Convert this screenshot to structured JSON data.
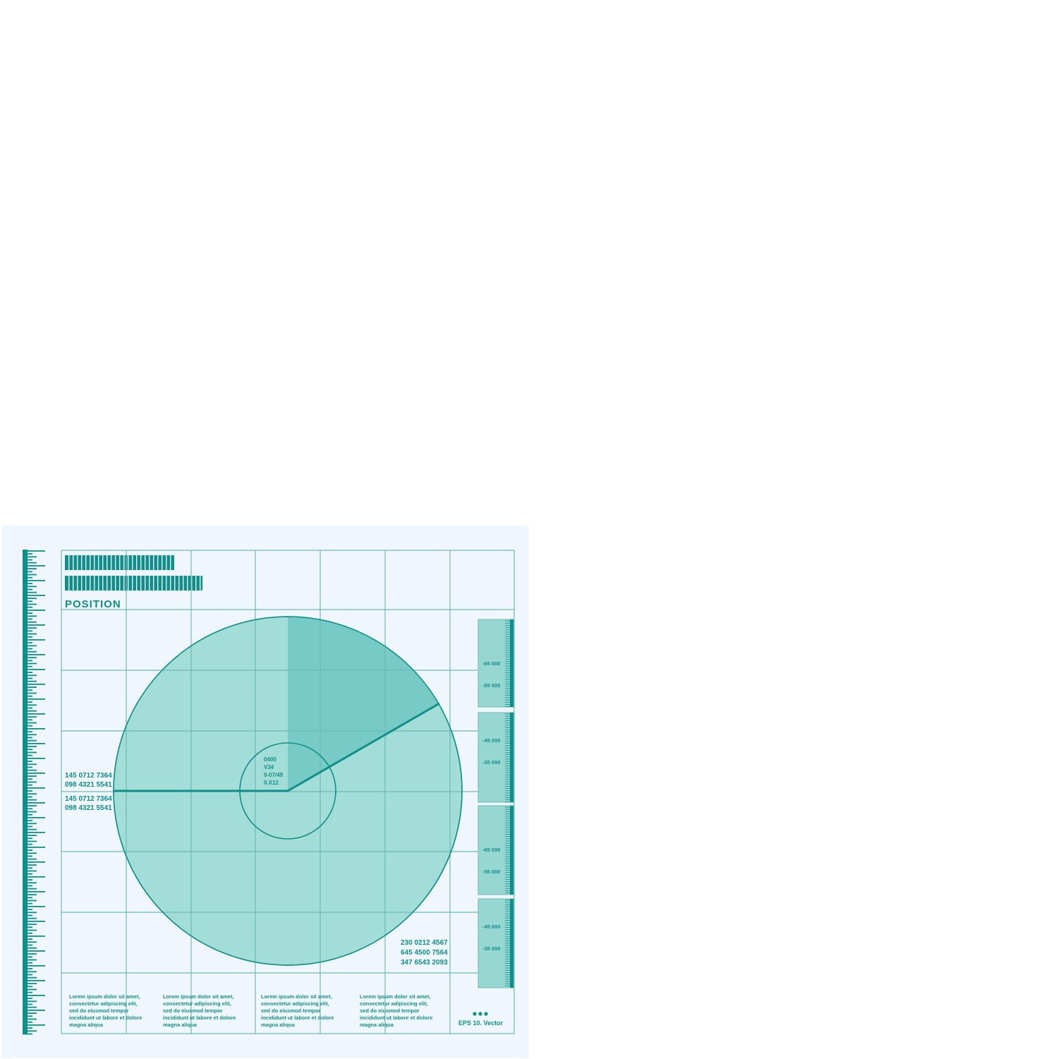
{
  "title": "POSITION",
  "side_codes_upper": [
    "145 0712 7364",
    "098 4321 5541"
  ],
  "side_codes_lower": [
    "145 0712 7364",
    "098 4321 5541"
  ],
  "center_codes": [
    "0400",
    "V34",
    "0-07/49",
    "0.X12"
  ],
  "corner_codes": [
    "230 0212 4567",
    "645 4500 7564",
    "347 6543 2093"
  ],
  "scale_labels": [
    [
      "-65 000",
      "-55 000"
    ],
    [
      "-45 000",
      "-35 000"
    ],
    [
      "-65 000",
      "-55 000"
    ],
    [
      "-45 000",
      "-35 000"
    ]
  ],
  "lorem_lines": [
    [
      "Lorem ipsum dolor sit amet,",
      "consectetur adipiscing elit,",
      "sed do eiusmod tempor",
      "incididunt ut labore et dolore",
      "magna aliqua"
    ],
    [
      "Lorem ipsum dolor sit amet,",
      "consectetur adipiscing elit,",
      "sed do eiusmod tempor",
      "incididunt ut labore et dolore",
      "magna aliqua"
    ],
    [
      "Lorem ipsum dolor sit amet,",
      "consectetur adipiscing elit,",
      "sed do eiusmod tempor",
      "incididunt ut labore et dolore",
      "magna aliqua"
    ],
    [
      "Lorem ipsum dolor sit amet,",
      "consectetur adipiscing elit,",
      "sed do eiusmod tempor",
      "incididunt ut labore et dolore",
      "magna aliqua"
    ]
  ],
  "footer": "EPS 10. Vector",
  "colors": {
    "accent": "#0f8f8a",
    "grid": "#6fb9b5",
    "disc_fill": "#a3ddd8",
    "sector_fill": "#77cbc6",
    "panel_bg": "#eff6fd",
    "scale_fill": "#97d7d2"
  }
}
